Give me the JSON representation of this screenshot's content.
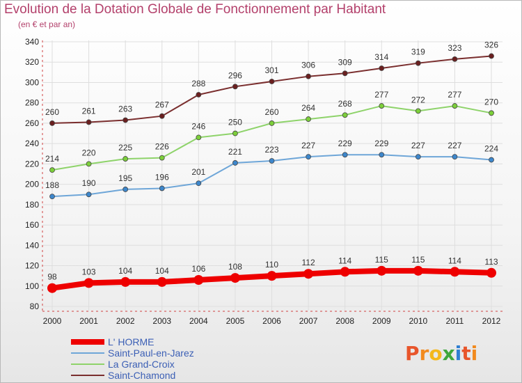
{
  "chart_data": {
    "type": "line",
    "title": "Evolution de la Dotation Globale de Fonctionnement par Habitant",
    "subtitle": "(en € et par an)",
    "xlabel": "",
    "ylabel": "",
    "ylim": [
      80,
      340
    ],
    "ytick_step": 20,
    "grid": true,
    "legend_position": "bottom-left",
    "x": [
      "2000",
      "2001",
      "2002",
      "2003",
      "2004",
      "2005",
      "2006",
      "2007",
      "2008",
      "2009",
      "2010",
      "2011",
      "2012"
    ],
    "series": [
      {
        "name": "Saint-Chamond",
        "color": "#7a2e2e",
        "marker": "#6b1f1f",
        "values": [
          260,
          261,
          263,
          267,
          288,
          296,
          301,
          306,
          309,
          314,
          319,
          323,
          326
        ]
      },
      {
        "name": "La Grand-Croix",
        "color": "#8ed36a",
        "marker": "#7ccf3a",
        "values": [
          214,
          220,
          225,
          226,
          246,
          250,
          260,
          264,
          268,
          277,
          272,
          277,
          270
        ]
      },
      {
        "name": "Saint-Paul-en-Jarez",
        "color": "#6ea6d8",
        "marker": "#3d87cc",
        "values": [
          188,
          190,
          195,
          196,
          201,
          221,
          223,
          227,
          229,
          229,
          227,
          227,
          224
        ]
      },
      {
        "name": "L' HORME",
        "color": "#ee0000",
        "marker": "#ee0000",
        "values": [
          98,
          103,
          104,
          104,
          106,
          108,
          110,
          112,
          114,
          115,
          115,
          114,
          113
        ]
      }
    ],
    "legend": [
      "L' HORME",
      "Saint-Paul-en-Jarez",
      "La Grand-Croix",
      "Saint-Chamond"
    ]
  },
  "logo": {
    "text": "Proxiti",
    "colors": [
      "#e8552b",
      "#f28a1e",
      "#f4b81c",
      "#3ea73b",
      "#2f7fd1",
      "#e8552b",
      "#f28a1e"
    ]
  }
}
